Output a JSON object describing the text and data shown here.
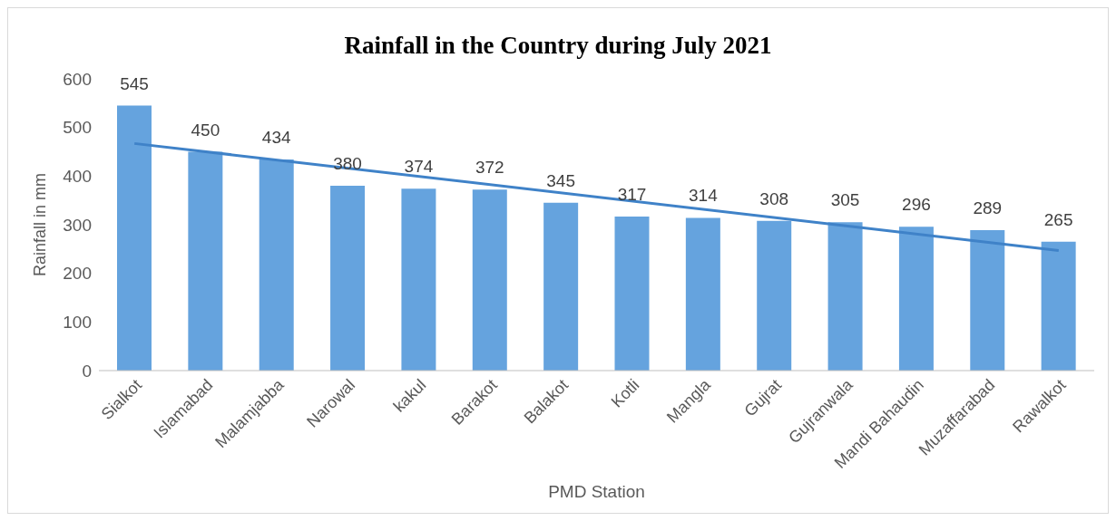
{
  "chart_data": {
    "type": "bar",
    "title": "Rainfall in the Country during July 2021",
    "xlabel": "PMD Station",
    "ylabel": "Rainfall in mm",
    "categories": [
      "Sialkot",
      "Islamabad",
      "Malamjabba",
      "Narowal",
      "kakul",
      "Barakot",
      "Balakot",
      "Kotli",
      "Mangla",
      "Gujrat",
      "Gujranwala",
      "Mandi Bahaudin",
      "Muzaffarabad",
      "Rawalkot"
    ],
    "series": [
      {
        "color": "#65a3de",
        "values": [
          545,
          450,
          434,
          380,
          374,
          372,
          345,
          317,
          314,
          308,
          305,
          296,
          289,
          265
        ],
        "value_labels": [
          "545",
          "450",
          "434",
          "380",
          "374",
          "372",
          "345",
          "317",
          "314",
          "308",
          "305",
          "296",
          "289",
          "265"
        ]
      },
      {
        "type": "line",
        "color": "#3f82c8",
        "x": [
          "Sialkot",
          "Rawalkot"
        ],
        "values": [
          467,
          247
        ]
      }
    ],
    "ylim": [
      0,
      600
    ],
    "yticks": [
      0,
      100,
      200,
      300,
      400,
      500,
      600
    ],
    "grid": false,
    "legend": false,
    "marker": "none"
  }
}
